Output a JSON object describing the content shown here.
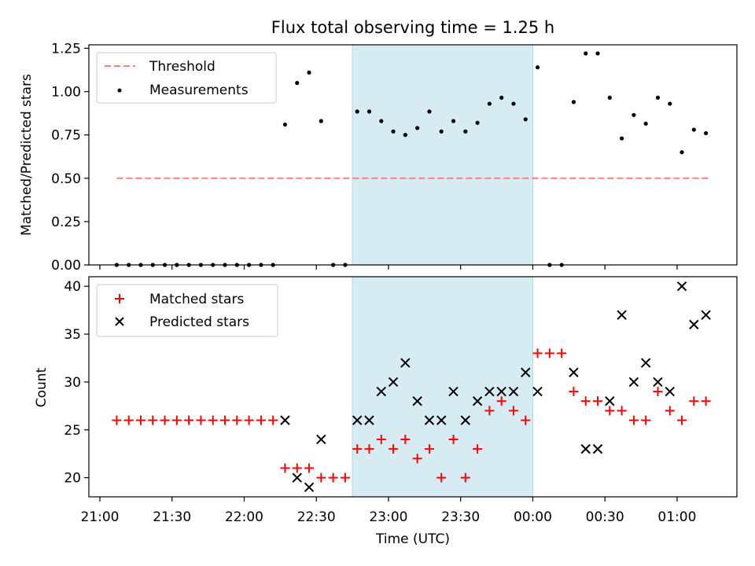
{
  "title": "Flux total observing time = 1.25 h",
  "xlabel": "Time (UTC)",
  "colors": {
    "threshold": "#ff7f7f",
    "shade": "#add8e6",
    "matched": "#ff0000",
    "predicted": "#000000",
    "points": "#000000"
  },
  "chart_data": [
    {
      "type": "scatter",
      "ylabel": "Matched/Predicted stars",
      "ylim": [
        0,
        1.27
      ],
      "yticks": [
        0,
        0.25,
        0.5,
        0.75,
        1.0,
        1.25
      ],
      "ytick_labels": [
        "0.00",
        "0.25",
        "0.50",
        "0.75",
        "1.00",
        "1.25"
      ],
      "legend": {
        "placement": "upper-left",
        "entries": [
          "Threshold",
          "Measurements"
        ]
      },
      "shaded_span": {
        "x_start": "22:45",
        "x_end": "00:00"
      },
      "series": [
        {
          "name": "Threshold",
          "kind": "line",
          "x": [
            "21:07",
            "01:13"
          ],
          "y": [
            0.5,
            0.5
          ]
        },
        {
          "name": "Measurements",
          "kind": "points",
          "x": [
            "21:07",
            "21:12",
            "21:17",
            "21:22",
            "21:27",
            "21:32",
            "21:37",
            "21:42",
            "21:47",
            "21:52",
            "21:57",
            "22:02",
            "22:07",
            "22:12",
            "22:17",
            "22:22",
            "22:27",
            "22:32",
            "22:37",
            "22:42",
            "22:47",
            "22:52",
            "22:57",
            "23:02",
            "23:07",
            "23:12",
            "23:17",
            "23:22",
            "23:27",
            "23:32",
            "23:37",
            "23:42",
            "23:47",
            "23:52",
            "23:57",
            "00:02",
            "00:07",
            "00:12",
            "00:17",
            "00:22",
            "00:27",
            "00:32",
            "00:37",
            "00:42",
            "00:47",
            "00:52",
            "00:57",
            "01:02",
            "01:07",
            "01:12"
          ],
          "y": [
            0,
            0,
            0,
            0,
            0,
            0,
            0,
            0,
            0,
            0,
            0,
            0,
            0,
            0,
            0.81,
            1.05,
            1.11,
            0.83,
            0,
            0,
            0.885,
            0.885,
            0.83,
            0.77,
            0.75,
            0.79,
            0.885,
            0.77,
            0.83,
            0.77,
            0.82,
            0.93,
            0.965,
            0.93,
            0.84,
            1.14,
            0,
            0,
            0.94,
            1.22,
            1.22,
            0.965,
            0.73,
            0.865,
            0.815,
            0.965,
            0.93,
            0.65,
            0.78,
            0.76
          ]
        }
      ]
    },
    {
      "type": "scatter",
      "ylabel": "Count",
      "ylim": [
        18,
        41
      ],
      "yticks": [
        20,
        25,
        30,
        35,
        40
      ],
      "ytick_labels": [
        "20",
        "25",
        "30",
        "35",
        "40"
      ],
      "xticks": [
        "21:00",
        "21:30",
        "22:00",
        "22:30",
        "23:00",
        "23:30",
        "00:00",
        "00:30",
        "01:00"
      ],
      "legend": {
        "placement": "upper-left",
        "entries": [
          "Matched stars",
          "Predicted stars"
        ]
      },
      "shaded_span": {
        "x_start": "22:45",
        "x_end": "00:00"
      },
      "series": [
        {
          "name": "Matched stars",
          "marker": "plus",
          "x": [
            "21:07",
            "21:12",
            "21:17",
            "21:22",
            "21:27",
            "21:32",
            "21:37",
            "21:42",
            "21:47",
            "21:52",
            "21:57",
            "22:02",
            "22:07",
            "22:12",
            "22:17",
            "22:22",
            "22:27",
            "22:32",
            "22:37",
            "22:42",
            "22:47",
            "22:52",
            "22:57",
            "23:02",
            "23:07",
            "23:12",
            "23:17",
            "23:22",
            "23:27",
            "23:32",
            "23:37",
            "23:42",
            "23:47",
            "23:52",
            "23:57",
            "00:02",
            "00:07",
            "00:12",
            "00:17",
            "00:22",
            "00:27",
            "00:32",
            "00:37",
            "00:42",
            "00:47",
            "00:52",
            "00:57",
            "01:02",
            "01:07",
            "01:12"
          ],
          "y": [
            26,
            26,
            26,
            26,
            26,
            26,
            26,
            26,
            26,
            26,
            26,
            26,
            26,
            26,
            21,
            21,
            21,
            20,
            20,
            20,
            23,
            23,
            24,
            23,
            24,
            22,
            23,
            20,
            24,
            20,
            23,
            27,
            28,
            27,
            26,
            33,
            33,
            33,
            29,
            28,
            28,
            27,
            27,
            26,
            26,
            29,
            27,
            26,
            28,
            28
          ]
        },
        {
          "name": "Predicted stars",
          "marker": "x",
          "x": [
            "22:17",
            "22:22",
            "22:27",
            "22:32",
            "22:47",
            "22:52",
            "22:57",
            "23:02",
            "23:07",
            "23:12",
            "23:17",
            "23:22",
            "23:27",
            "23:32",
            "23:37",
            "23:42",
            "23:47",
            "23:52",
            "23:57",
            "00:02",
            "00:17",
            "00:22",
            "00:27",
            "00:32",
            "00:37",
            "00:42",
            "00:47",
            "00:52",
            "00:57",
            "01:02",
            "01:07",
            "01:12"
          ],
          "y": [
            26,
            20,
            19,
            24,
            26,
            26,
            29,
            30,
            32,
            28,
            26,
            26,
            29,
            26,
            28,
            29,
            29,
            29,
            31,
            29,
            31,
            23,
            23,
            28,
            37,
            30,
            32,
            30,
            29,
            40,
            36,
            37
          ]
        }
      ]
    }
  ]
}
